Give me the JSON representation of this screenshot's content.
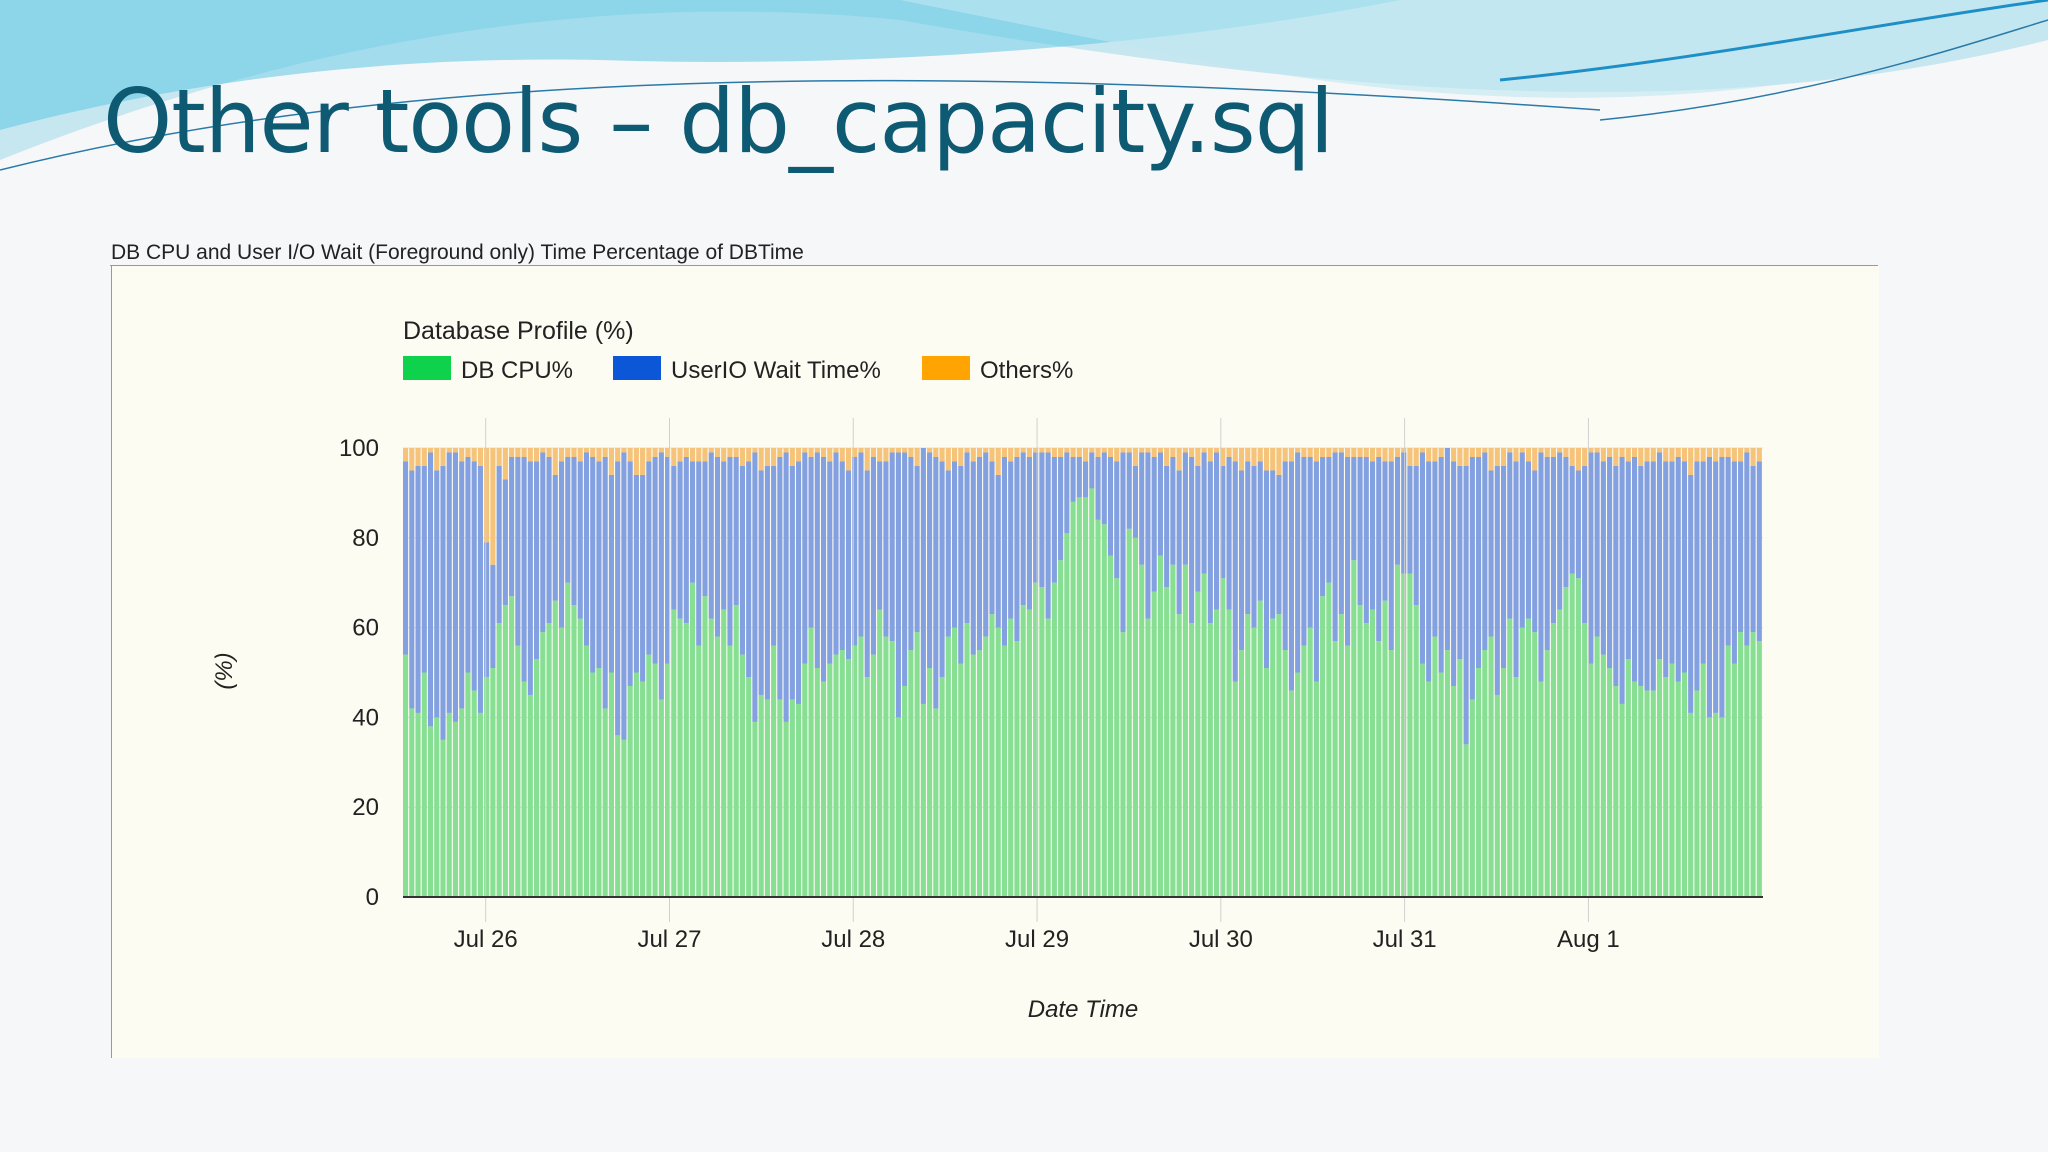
{
  "slide": {
    "title": "Other tools – db_capacity.sql"
  },
  "panel": {
    "title": "DB CPU and User I/O Wait (Foreground only) Time Percentage of DBTime"
  },
  "colors": {
    "cpu": "#86df93",
    "io": "#83a0e0",
    "others": "#f5c37a",
    "cpu_legend": "#0ed24c",
    "io_legend": "#0b57d8",
    "others_legend": "#ffa400"
  },
  "chart_data": {
    "type": "bar",
    "stacked": true,
    "title": "Database Profile (%)",
    "xlabel": "Date Time",
    "ylabel": "(%)",
    "ylim": [
      0,
      100
    ],
    "yticks": [
      0,
      20,
      40,
      60,
      80,
      100
    ],
    "grid": true,
    "legend": "top-left",
    "x_tick_labels": [
      "Jul 26",
      "Jul 27",
      "Jul 28",
      "Jul 29",
      "Jul 30",
      "Jul 31",
      "Aug 1"
    ],
    "series": [
      {
        "name": "DB CPU%",
        "values": [
          54,
          42,
          41,
          50,
          38,
          40,
          35,
          41,
          39,
          42,
          50,
          46,
          41,
          49,
          51,
          61,
          65,
          67,
          56,
          48,
          45,
          53,
          59,
          61,
          66,
          60,
          70,
          65,
          62,
          56,
          50,
          51,
          42,
          50,
          36,
          35,
          47,
          50,
          48,
          54,
          52,
          44,
          52,
          64,
          62,
          61,
          70,
          56,
          67,
          62,
          58,
          64,
          56,
          65,
          54,
          49,
          39,
          45,
          44,
          56,
          44,
          39,
          44,
          43,
          52,
          60,
          51,
          48,
          52,
          54,
          55,
          53,
          56,
          58,
          49,
          54,
          64,
          58,
          57,
          40,
          47,
          55,
          59,
          43,
          51,
          42,
          49,
          58,
          60,
          52,
          61,
          54,
          55,
          58,
          63,
          60,
          56,
          62,
          57,
          65,
          64,
          70,
          69,
          62,
          70,
          75,
          81,
          88,
          89,
          89,
          91,
          84,
          83,
          76,
          71,
          59,
          82,
          80,
          74,
          62,
          68,
          76,
          69,
          74,
          63,
          74,
          61,
          68,
          72,
          61,
          64,
          71,
          64,
          48,
          55,
          63,
          60,
          66,
          51,
          62,
          63,
          55,
          46,
          50,
          56,
          60,
          48,
          67,
          70,
          57,
          63,
          56,
          75,
          65,
          61,
          64,
          57,
          66,
          55,
          74,
          72,
          72,
          65,
          52,
          48,
          58,
          50,
          55,
          47,
          53,
          34,
          44,
          51,
          55,
          58,
          45,
          51,
          62,
          49,
          60,
          62,
          59,
          48,
          55,
          61,
          64,
          69,
          72,
          71,
          61,
          52,
          58,
          54,
          51,
          47,
          43,
          53,
          48,
          47,
          46,
          46,
          53,
          49,
          52,
          48,
          50,
          41,
          46,
          52,
          40,
          41,
          40,
          56,
          52,
          59,
          56,
          59,
          57
        ]
      },
      {
        "name": "UserIO Wait Time%",
        "values": [
          43,
          53,
          55,
          46,
          61,
          55,
          61,
          58,
          60,
          55,
          48,
          51,
          55,
          30,
          23,
          35,
          28,
          31,
          42,
          50,
          52,
          44,
          40,
          37,
          28,
          37,
          28,
          33,
          35,
          43,
          48,
          46,
          56,
          44,
          61,
          64,
          50,
          44,
          46,
          43,
          46,
          55,
          46,
          32,
          35,
          37,
          27,
          41,
          30,
          37,
          40,
          33,
          42,
          33,
          42,
          48,
          60,
          50,
          52,
          40,
          54,
          60,
          52,
          54,
          47,
          38,
          48,
          50,
          45,
          45,
          42,
          42,
          42,
          41,
          46,
          44,
          33,
          39,
          42,
          59,
          52,
          43,
          37,
          57,
          48,
          56,
          48,
          37,
          37,
          44,
          38,
          43,
          43,
          41,
          34,
          34,
          42,
          35,
          41,
          34,
          34,
          29,
          30,
          37,
          28,
          23,
          18,
          10,
          9,
          8,
          8,
          14,
          16,
          22,
          26,
          40,
          17,
          16,
          25,
          37,
          30,
          23,
          27,
          24,
          32,
          25,
          37,
          28,
          27,
          36,
          35,
          25,
          34,
          49,
          40,
          34,
          36,
          31,
          44,
          33,
          31,
          42,
          51,
          49,
          42,
          38,
          49,
          31,
          28,
          42,
          36,
          42,
          23,
          33,
          37,
          33,
          41,
          31,
          42,
          24,
          27,
          24,
          31,
          47,
          49,
          39,
          48,
          45,
          50,
          43,
          62,
          54,
          47,
          44,
          37,
          51,
          45,
          37,
          48,
          39,
          35,
          36,
          51,
          43,
          37,
          35,
          29,
          24,
          24,
          35,
          47,
          41,
          43,
          47,
          49,
          55,
          44,
          50,
          49,
          51,
          51,
          46,
          48,
          45,
          50,
          47,
          53,
          51,
          45,
          58,
          56,
          58,
          42,
          45,
          38,
          43,
          37,
          40
        ]
      },
      {
        "name": "Others%",
        "values": [
          3,
          5,
          4,
          4,
          1,
          5,
          4,
          1,
          1,
          3,
          2,
          3,
          4,
          21,
          26,
          4,
          7,
          2,
          2,
          2,
          3,
          3,
          1,
          2,
          6,
          3,
          2,
          2,
          3,
          1,
          2,
          3,
          2,
          6,
          3,
          1,
          3,
          6,
          6,
          3,
          2,
          1,
          2,
          4,
          3,
          2,
          3,
          3,
          3,
          1,
          2,
          3,
          2,
          2,
          4,
          3,
          1,
          5,
          4,
          4,
          2,
          1,
          4,
          3,
          1,
          2,
          1,
          2,
          3,
          1,
          3,
          5,
          2,
          1,
          5,
          2,
          3,
          3,
          1,
          1,
          1,
          2,
          4,
          0,
          1,
          2,
          3,
          5,
          3,
          4,
          1,
          3,
          2,
          1,
          3,
          6,
          2,
          3,
          2,
          1,
          2,
          1,
          1,
          1,
          2,
          2,
          1,
          2,
          2,
          3,
          1,
          2,
          1,
          2,
          3,
          1,
          1,
          4,
          1,
          1,
          2,
          1,
          4,
          2,
          5,
          1,
          2,
          4,
          1,
          3,
          1,
          4,
          2,
          3,
          5,
          3,
          4,
          3,
          5,
          5,
          6,
          3,
          3,
          1,
          2,
          2,
          3,
          2,
          2,
          1,
          1,
          2,
          2,
          2,
          2,
          3,
          2,
          3,
          3,
          2,
          1,
          4,
          4,
          1,
          3,
          3,
          2,
          0,
          3,
          4,
          4,
          2,
          2,
          1,
          5,
          4,
          4,
          1,
          3,
          1,
          3,
          5,
          1,
          2,
          2,
          1,
          2,
          4,
          5,
          4,
          1,
          1,
          3,
          2,
          4,
          2,
          3,
          2,
          4,
          3,
          3,
          1,
          3,
          3,
          2,
          3,
          6,
          3,
          3,
          2,
          3,
          2,
          2,
          3,
          3,
          1,
          4,
          3
        ]
      }
    ]
  }
}
